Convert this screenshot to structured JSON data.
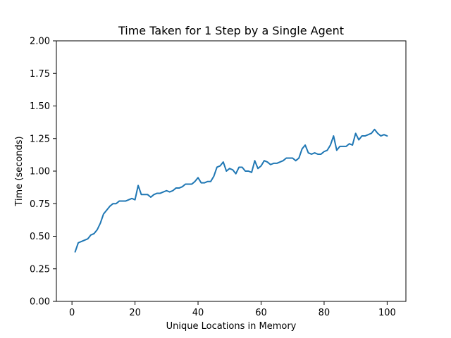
{
  "chart_data": {
    "type": "line",
    "title": "Time Taken for 1 Step by a Single Agent",
    "xlabel": "Unique Locations in Memory",
    "ylabel": "Time (seconds)",
    "xlim": [
      -4.95,
      105.95
    ],
    "ylim": [
      0,
      2
    ],
    "x_ticks": [
      0,
      20,
      40,
      60,
      80,
      100
    ],
    "x_tick_labels": [
      "0",
      "20",
      "40",
      "60",
      "80",
      "100"
    ],
    "y_ticks": [
      0,
      0.25,
      0.5,
      0.75,
      1.0,
      1.25,
      1.5,
      1.75,
      2.0
    ],
    "y_tick_labels": [
      "0.00",
      "0.25",
      "0.50",
      "0.75",
      "1.00",
      "1.25",
      "1.50",
      "1.75",
      "2.00"
    ],
    "grid": false,
    "line_color": "#1f77b4",
    "series": [
      {
        "x": [
          1,
          2,
          3,
          4,
          5,
          6,
          7,
          8,
          9,
          10,
          11,
          12,
          13,
          14,
          15,
          16,
          17,
          18,
          19,
          20,
          21,
          22,
          23,
          24,
          25,
          26,
          27,
          28,
          29,
          30,
          31,
          32,
          33,
          34,
          35,
          36,
          37,
          38,
          39,
          40,
          41,
          42,
          43,
          44,
          45,
          46,
          47,
          48,
          49,
          50,
          51,
          52,
          53,
          54,
          55,
          56,
          57,
          58,
          59,
          60,
          61,
          62,
          63,
          64,
          65,
          66,
          67,
          68,
          69,
          70,
          71,
          72,
          73,
          74,
          75,
          76,
          77,
          78,
          79,
          80,
          81,
          82,
          83,
          84,
          85,
          86,
          87,
          88,
          89,
          90,
          91,
          92,
          93,
          94,
          95,
          96,
          97,
          98,
          99,
          100
        ],
        "values": [
          0.38,
          0.45,
          0.46,
          0.47,
          0.48,
          0.51,
          0.52,
          0.55,
          0.6,
          0.67,
          0.7,
          0.73,
          0.75,
          0.75,
          0.77,
          0.77,
          0.77,
          0.78,
          0.79,
          0.78,
          0.89,
          0.82,
          0.82,
          0.82,
          0.8,
          0.82,
          0.83,
          0.83,
          0.84,
          0.85,
          0.84,
          0.85,
          0.87,
          0.87,
          0.88,
          0.9,
          0.9,
          0.9,
          0.92,
          0.95,
          0.91,
          0.91,
          0.92,
          0.92,
          0.96,
          1.03,
          1.04,
          1.07,
          1.0,
          1.02,
          1.01,
          0.98,
          1.03,
          1.03,
          1.0,
          1.0,
          0.99,
          1.08,
          1.02,
          1.04,
          1.08,
          1.07,
          1.05,
          1.06,
          1.06,
          1.07,
          1.08,
          1.1,
          1.1,
          1.1,
          1.08,
          1.1,
          1.17,
          1.2,
          1.14,
          1.13,
          1.14,
          1.13,
          1.13,
          1.15,
          1.16,
          1.2,
          1.27,
          1.16,
          1.19,
          1.19,
          1.19,
          1.21,
          1.2,
          1.29,
          1.24,
          1.27,
          1.27,
          1.28,
          1.29,
          1.32,
          1.29,
          1.27,
          1.28,
          1.27
        ]
      }
    ]
  }
}
